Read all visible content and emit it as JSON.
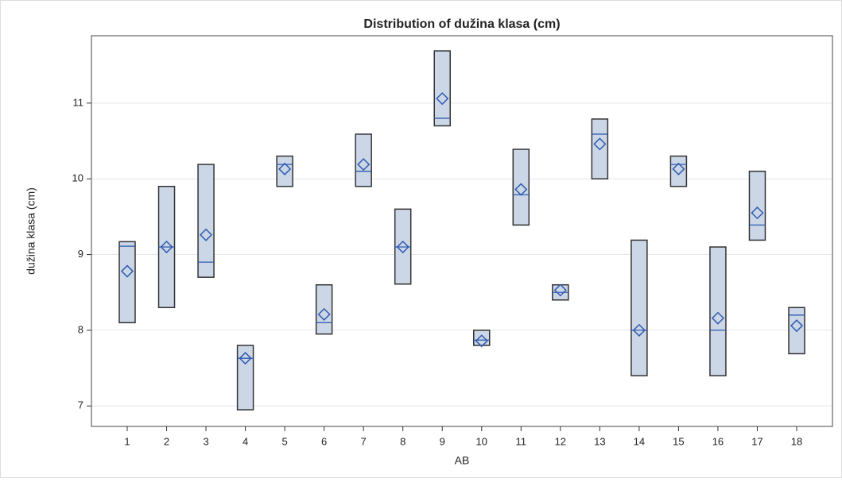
{
  "chart_data": {
    "type": "box",
    "title": "Distribution of dužina klasa (cm)",
    "x_label": "AB",
    "y_label": "dužina klasa (cm)",
    "categories": [
      "1",
      "2",
      "3",
      "4",
      "5",
      "6",
      "7",
      "8",
      "9",
      "10",
      "11",
      "12",
      "13",
      "14",
      "15",
      "16",
      "17",
      "18"
    ],
    "q1": [
      8.1,
      8.3,
      8.7,
      6.95,
      9.9,
      7.95,
      9.9,
      8.61,
      10.7,
      7.8,
      9.39,
      8.4,
      10.0,
      7.4,
      9.9,
      7.4,
      9.19,
      7.69
    ],
    "median": [
      9.11,
      9.1,
      8.9,
      7.63,
      10.19,
      8.1,
      10.1,
      9.1,
      10.8,
      7.87,
      9.79,
      8.5,
      10.59,
      8.0,
      10.19,
      8.0,
      9.39,
      8.2
    ],
    "q3": [
      9.17,
      9.9,
      10.19,
      7.8,
      10.3,
      8.6,
      10.59,
      9.6,
      11.69,
      8.0,
      10.39,
      8.6,
      10.79,
      9.19,
      10.3,
      9.1,
      10.1,
      8.3
    ],
    "mean": [
      8.78,
      9.1,
      9.26,
      7.63,
      10.13,
      8.21,
      10.19,
      9.1,
      11.06,
      7.86,
      9.86,
      8.53,
      10.46,
      8.0,
      10.13,
      8.16,
      9.55,
      8.06
    ],
    "ylim": [
      6.73,
      11.89
    ],
    "yticks": [
      7,
      8,
      9,
      10,
      11
    ],
    "grid": true,
    "box_color": "#cbd6e6",
    "line_color": "#2f5bb0"
  }
}
